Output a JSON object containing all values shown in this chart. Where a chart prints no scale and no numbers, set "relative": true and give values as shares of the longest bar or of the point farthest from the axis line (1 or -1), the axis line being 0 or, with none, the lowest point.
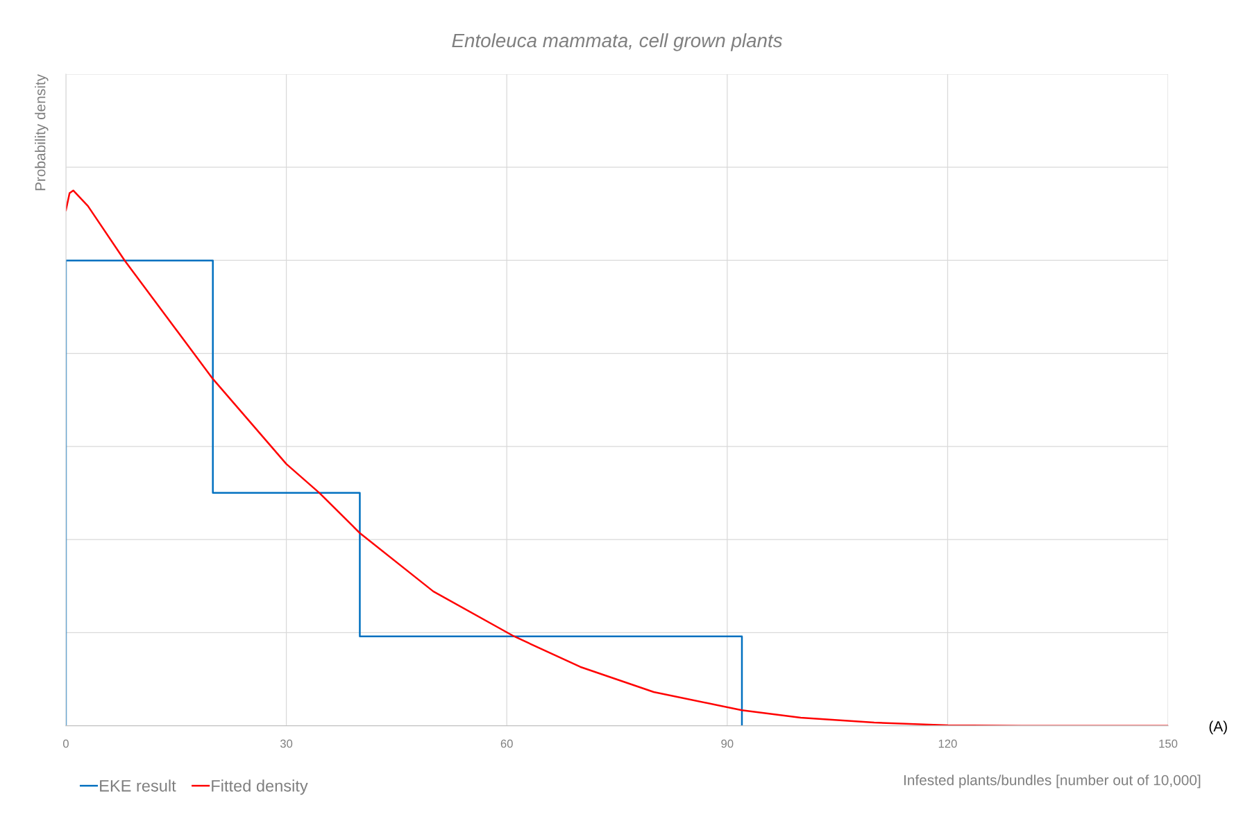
{
  "chart_data": {
    "type": "line",
    "title": "Entoleuca mammata, cell grown plants",
    "xlabel": "Infested plants/bundles [number out of 10,000]",
    "ylabel": "Probability density",
    "relative": true,
    "xlim": [
      0,
      150
    ],
    "xticks": [
      0,
      30,
      60,
      90,
      120,
      150
    ],
    "grid": true,
    "legend": "bottom left",
    "series": [
      {
        "name": "EKE result",
        "color": "#0070c0",
        "x": [
          0,
          0,
          20,
          20,
          40,
          40,
          92,
          92
        ],
        "values": [
          0,
          0.869,
          0.869,
          0.435,
          0.435,
          0.167,
          0.167,
          0
        ]
      },
      {
        "name": "Fitted density",
        "color": "#ff0000",
        "x": [
          0,
          0.5,
          1,
          3,
          8,
          20,
          30,
          34.5,
          40,
          50,
          61,
          70,
          80,
          92,
          100,
          110,
          120,
          130,
          150
        ],
        "values": [
          0.963,
          0.995,
          1.0,
          0.971,
          0.869,
          0.648,
          0.489,
          0.435,
          0.36,
          0.251,
          0.167,
          0.11,
          0.063,
          0.029,
          0.015,
          0.006,
          0.001,
          0,
          0
        ]
      }
    ],
    "annotations": [
      "(A)"
    ]
  }
}
